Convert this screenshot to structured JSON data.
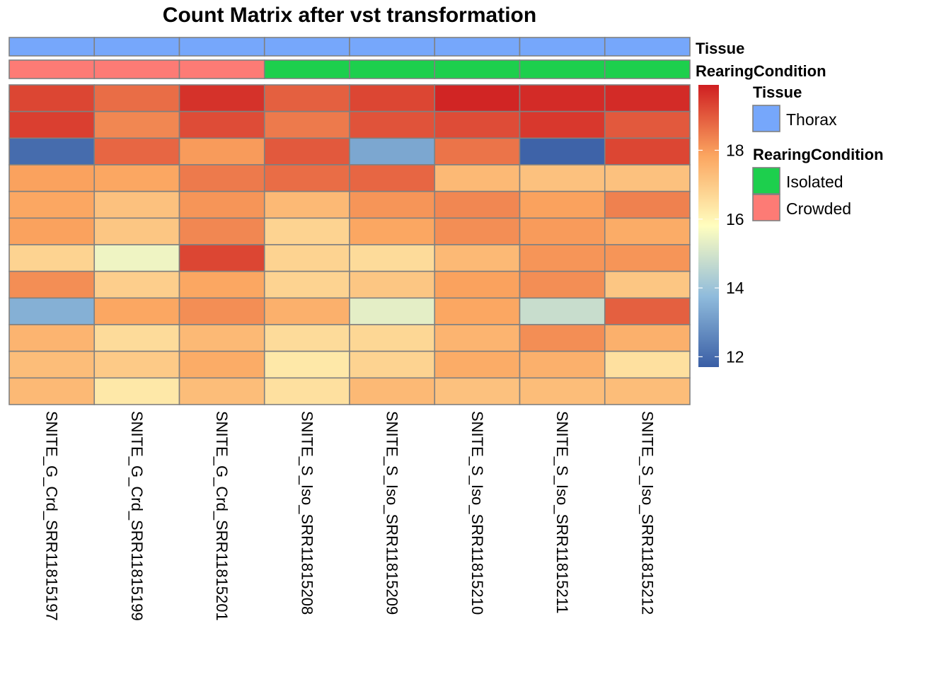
{
  "chart_data": {
    "type": "heatmap",
    "title": "Count Matrix after vst transformation",
    "columns": [
      "SNITE_G_Crd_SRR11815197",
      "SNITE_G_Crd_SRR11815199",
      "SNITE_G_Crd_SRR11815201",
      "SNITE_S_Iso_SRR11815208",
      "SNITE_S_Iso_SRR11815209",
      "SNITE_S_Iso_SRR11815210",
      "SNITE_S_Iso_SRR11815211",
      "SNITE_S_Iso_SRR11815212"
    ],
    "values": [
      [
        19.3,
        18.7,
        19.6,
        18.9,
        19.3,
        19.8,
        19.7,
        19.7
      ],
      [
        19.4,
        18.3,
        19.2,
        18.5,
        19.1,
        19.2,
        19.5,
        19.0
      ],
      [
        12.0,
        18.8,
        18.0,
        19.0,
        13.3,
        18.6,
        11.8,
        19.3
      ],
      [
        17.9,
        17.8,
        18.5,
        18.7,
        18.8,
        17.4,
        17.2,
        17.2
      ],
      [
        17.8,
        17.2,
        18.1,
        17.4,
        18.1,
        18.3,
        17.9,
        18.4
      ],
      [
        17.9,
        17.1,
        18.3,
        16.8,
        17.8,
        18.2,
        18.0,
        17.7
      ],
      [
        16.8,
        15.5,
        19.3,
        16.8,
        16.6,
        17.4,
        18.1,
        18.1
      ],
      [
        18.2,
        16.9,
        17.8,
        16.8,
        17.1,
        17.9,
        18.2,
        17.1
      ],
      [
        13.5,
        17.8,
        18.2,
        17.6,
        15.3,
        17.8,
        14.8,
        18.9
      ],
      [
        17.5,
        16.6,
        17.4,
        16.6,
        16.7,
        17.5,
        18.2,
        17.6
      ],
      [
        17.3,
        17.0,
        17.7,
        16.3,
        16.8,
        17.7,
        17.6,
        16.5
      ],
      [
        17.4,
        16.3,
        17.3,
        16.5,
        17.4,
        17.2,
        17.3,
        17.3
      ]
    ],
    "colorbar": {
      "ticks": [
        12,
        14,
        16,
        18
      ],
      "range": [
        11.7,
        19.9
      ],
      "colors": [
        "#3a5ea5",
        "#8fbbdc",
        "#fffebf",
        "#fba560",
        "#cf1e21"
      ]
    },
    "annotations": [
      {
        "name": "Tissue",
        "values": [
          "Thorax",
          "Thorax",
          "Thorax",
          "Thorax",
          "Thorax",
          "Thorax",
          "Thorax",
          "Thorax"
        ]
      },
      {
        "name": "RearingCondition",
        "values": [
          "Crowded",
          "Crowded",
          "Crowded",
          "Isolated",
          "Isolated",
          "Isolated",
          "Isolated",
          "Isolated"
        ]
      }
    ],
    "legend": [
      {
        "title": "Tissue",
        "entries": [
          {
            "label": "Thorax",
            "color": "#76a7fb"
          }
        ]
      },
      {
        "title": "RearingCondition",
        "entries": [
          {
            "label": "Isolated",
            "color": "#1dcf4d"
          },
          {
            "label": "Crowded",
            "color": "#fd7b75"
          }
        ]
      }
    ],
    "grid_color": "#808080"
  }
}
